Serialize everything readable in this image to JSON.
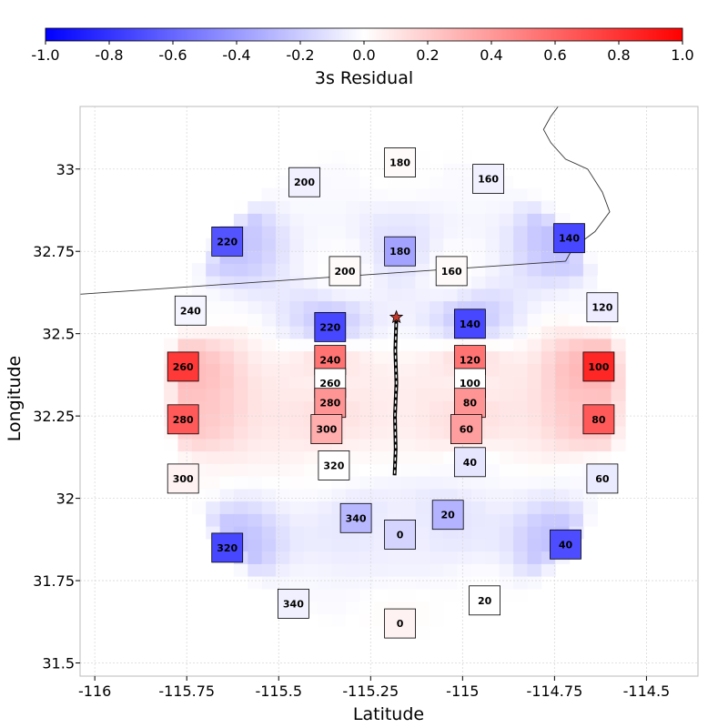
{
  "chart_data": {
    "type": "heatmap",
    "xlabel": "Latitude",
    "ylabel": "Longitude",
    "xlim": [
      -116.04,
      -114.36
    ],
    "ylim": [
      31.46,
      33.19
    ],
    "x_ticks": [
      -116,
      -115.75,
      -115.5,
      -115.25,
      -115,
      -114.75,
      -114.5
    ],
    "x_tick_labels": [
      "-116",
      "-115.75",
      "-115.5",
      "-115.25",
      "-115",
      "-114.75",
      "-114.5"
    ],
    "y_ticks": [
      31.5,
      31.75,
      32,
      32.25,
      32.5,
      32.75,
      33
    ],
    "y_tick_labels": [
      "31.5",
      "31.75",
      "32",
      "32.25",
      "32.5",
      "32.75",
      "33"
    ],
    "grid": true,
    "colorbar": {
      "title": "3s Residual",
      "range": [
        -1.0,
        1.0
      ],
      "ticks": [
        -1.0,
        -0.8,
        -0.6,
        -0.4,
        -0.2,
        0.0,
        0.2,
        0.4,
        0.6,
        0.8,
        1.0
      ],
      "tick_labels": [
        "-1.0",
        "-0.8",
        "-0.6",
        "-0.4",
        "-0.2",
        "0.0",
        "0.2",
        "0.4",
        "0.6",
        "0.8",
        "1.0"
      ],
      "colormap": "bwr",
      "low_color": "#0000ff",
      "mid_color": "#ffffff",
      "high_color": "#ff0000",
      "placement": "top"
    },
    "epicenter": {
      "x": -115.18,
      "y": 32.55
    },
    "fault_trace": [
      [
        -115.18,
        32.55
      ],
      [
        -115.183,
        32.45
      ],
      [
        -115.18,
        32.35
      ],
      [
        -115.184,
        32.25
      ],
      [
        -115.182,
        32.15
      ],
      [
        -115.185,
        32.07
      ]
    ],
    "stations": [
      {
        "label": "180",
        "x": -115.17,
        "y": 33.02,
        "value": 0.02
      },
      {
        "label": "200",
        "x": -115.43,
        "y": 32.96,
        "value": -0.06
      },
      {
        "label": "160",
        "x": -114.93,
        "y": 32.97,
        "value": -0.06
      },
      {
        "label": "220",
        "x": -115.64,
        "y": 32.78,
        "value": -0.67
      },
      {
        "label": "140",
        "x": -114.71,
        "y": 32.79,
        "value": -0.72
      },
      {
        "label": "180",
        "x": -115.17,
        "y": 32.75,
        "value": -0.36
      },
      {
        "label": "200",
        "x": -115.32,
        "y": 32.69,
        "value": 0.02
      },
      {
        "label": "160",
        "x": -115.03,
        "y": 32.69,
        "value": 0.02
      },
      {
        "label": "240",
        "x": -115.74,
        "y": 32.57,
        "value": -0.04
      },
      {
        "label": "120",
        "x": -114.62,
        "y": 32.58,
        "value": -0.07
      },
      {
        "label": "220",
        "x": -115.36,
        "y": 32.52,
        "value": -0.72
      },
      {
        "label": "140",
        "x": -114.98,
        "y": 32.53,
        "value": -0.72
      },
      {
        "label": "240",
        "x": -115.36,
        "y": 32.42,
        "value": 0.55
      },
      {
        "label": "120",
        "x": -114.98,
        "y": 32.42,
        "value": 0.55
      },
      {
        "label": "260",
        "x": -115.76,
        "y": 32.4,
        "value": 0.78
      },
      {
        "label": "100",
        "x": -114.63,
        "y": 32.4,
        "value": 0.85
      },
      {
        "label": "260",
        "x": -115.36,
        "y": 32.35,
        "value": 0.0
      },
      {
        "label": "100",
        "x": -114.98,
        "y": 32.35,
        "value": 0.0
      },
      {
        "label": "280",
        "x": -115.36,
        "y": 32.29,
        "value": 0.42
      },
      {
        "label": "80",
        "x": -114.98,
        "y": 32.29,
        "value": 0.42
      },
      {
        "label": "280",
        "x": -115.76,
        "y": 32.24,
        "value": 0.65
      },
      {
        "label": "80",
        "x": -114.63,
        "y": 32.24,
        "value": 0.65
      },
      {
        "label": "300",
        "x": -115.37,
        "y": 32.21,
        "value": 0.32
      },
      {
        "label": "60",
        "x": -114.99,
        "y": 32.21,
        "value": 0.38
      },
      {
        "label": "320",
        "x": -115.35,
        "y": 32.1,
        "value": 0.0
      },
      {
        "label": "40",
        "x": -114.98,
        "y": 32.11,
        "value": -0.1
      },
      {
        "label": "300",
        "x": -115.76,
        "y": 32.06,
        "value": 0.05
      },
      {
        "label": "60",
        "x": -114.62,
        "y": 32.06,
        "value": -0.08
      },
      {
        "label": "340",
        "x": -115.29,
        "y": 31.94,
        "value": -0.28
      },
      {
        "label": "20",
        "x": -115.04,
        "y": 31.95,
        "value": -0.3
      },
      {
        "label": "0",
        "x": -115.17,
        "y": 31.89,
        "value": -0.17
      },
      {
        "label": "320",
        "x": -115.64,
        "y": 31.85,
        "value": -0.72
      },
      {
        "label": "40",
        "x": -114.72,
        "y": 31.86,
        "value": -0.7
      },
      {
        "label": "340",
        "x": -115.46,
        "y": 31.68,
        "value": -0.06
      },
      {
        "label": "20",
        "x": -114.94,
        "y": 31.69,
        "value": 0.0
      },
      {
        "label": "0",
        "x": -115.17,
        "y": 31.62,
        "value": 0.05
      }
    ],
    "border_line": [
      [
        -116.04,
        32.62
      ],
      [
        -114.72,
        32.72
      ]
    ],
    "coastline": [
      [
        -114.72,
        32.72
      ],
      [
        -114.7,
        32.76
      ],
      [
        -114.64,
        32.81
      ],
      [
        -114.6,
        32.87
      ],
      [
        -114.62,
        32.93
      ],
      [
        -114.66,
        33.0
      ],
      [
        -114.72,
        33.03
      ],
      [
        -114.76,
        33.08
      ],
      [
        -114.78,
        33.12
      ],
      [
        -114.76,
        33.16
      ],
      [
        -114.74,
        33.19
      ]
    ]
  }
}
